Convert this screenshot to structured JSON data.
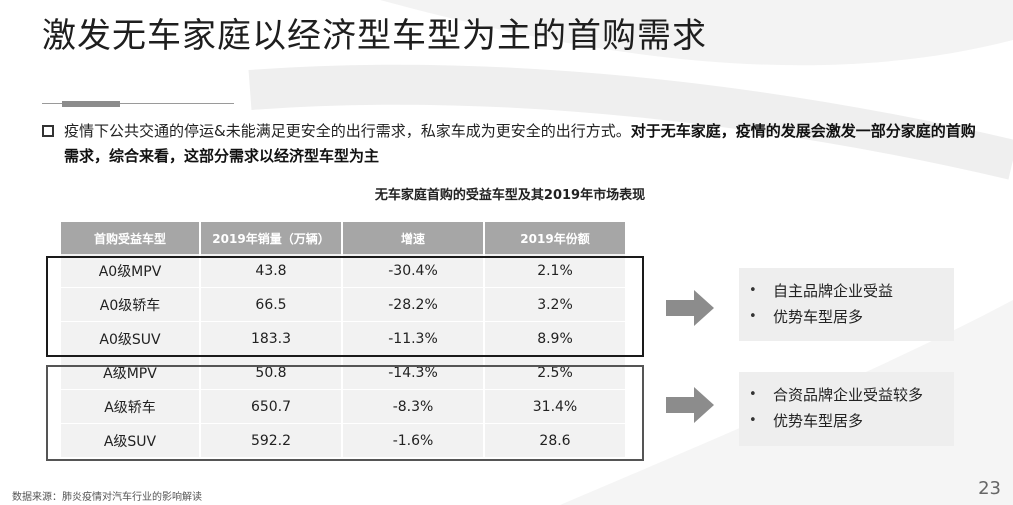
{
  "title": "激发无车家庭以经济型车型为主的首购需求",
  "intro": {
    "plain": "疫情下公共交通的停运&未能满足更安全的出行需求，私家车成为更安全的出行方式。",
    "bold": "对于无车家庭，疫情的发展会激发一部分家庭的首购需求，综合来看，这部分需求以经济型车型为主"
  },
  "table": {
    "caption": "无车家庭首购的受益车型及其2019年市场表现",
    "headers": [
      "首购受益车型",
      "2019年销量（万辆）",
      "增速",
      "2019年份额"
    ],
    "rows": [
      [
        "A0级MPV",
        "43.8",
        "-30.4%",
        "2.1%"
      ],
      [
        "A0级轿车",
        "66.5",
        "-28.2%",
        "3.2%"
      ],
      [
        "A0级SUV",
        "183.3",
        "-11.3%",
        "8.9%"
      ],
      [
        "A级MPV",
        "50.8",
        "-14.3%",
        "2.5%"
      ],
      [
        "A级轿车",
        "650.7",
        "-8.3%",
        "31.4%"
      ],
      [
        "A级SUV",
        "592.2",
        "-1.6%",
        "28.6"
      ]
    ]
  },
  "benefits": [
    {
      "items": [
        "自主品牌企业受益",
        "优势车型居多"
      ]
    },
    {
      "items": [
        "合资品牌企业受益较多",
        "优势车型居多"
      ]
    }
  ],
  "source": "数据来源：肺炎疫情对汽车行业的影响解读",
  "page_number": "23",
  "colors": {
    "header_bg": "#a6a6a6",
    "cell_bg": "#f2f2f2",
    "benefit_bg": "#eeeeee",
    "arrow": "#8c8c8c"
  }
}
